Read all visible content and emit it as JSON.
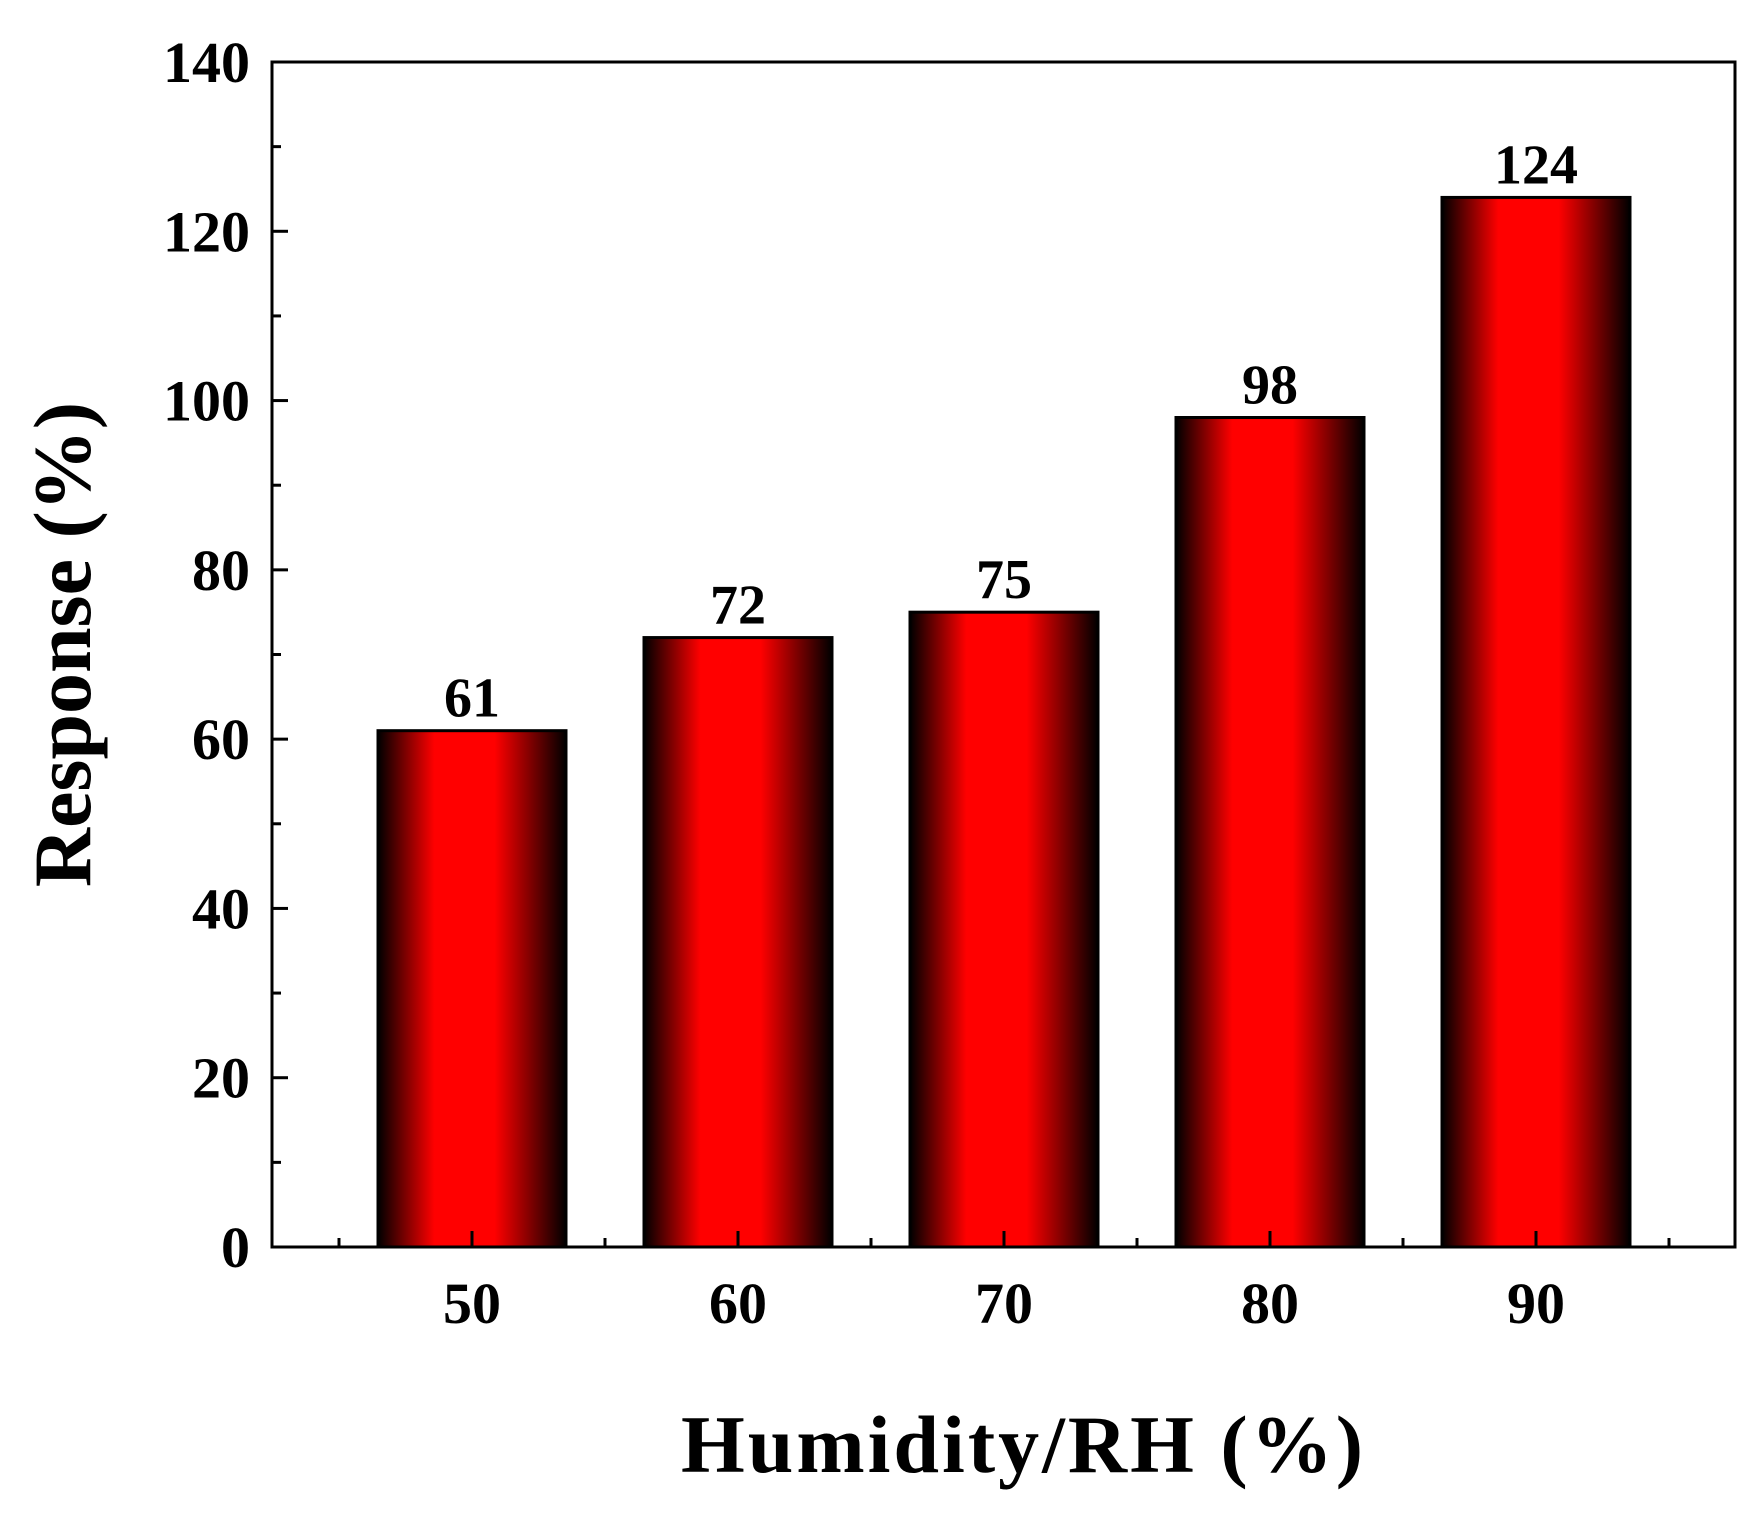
{
  "chart_data": {
    "type": "bar",
    "categories": [
      "50",
      "60",
      "70",
      "80",
      "90"
    ],
    "values": [
      61,
      72,
      75,
      98,
      124
    ],
    "data_labels": [
      "61",
      "72",
      "75",
      "98",
      "124"
    ],
    "title": "",
    "xlabel": "Humidity/RH (%)",
    "ylabel": "Response (%)",
    "ylim": [
      0,
      140
    ],
    "yticks": [
      0,
      20,
      40,
      60,
      80,
      100,
      120,
      140
    ],
    "y_minor_step": 10,
    "grid": false,
    "legend": "none",
    "colors": {
      "bar_center": "#ff0000",
      "bar_edge": "#000000",
      "axis": "#000000",
      "text": "#000000"
    }
  }
}
